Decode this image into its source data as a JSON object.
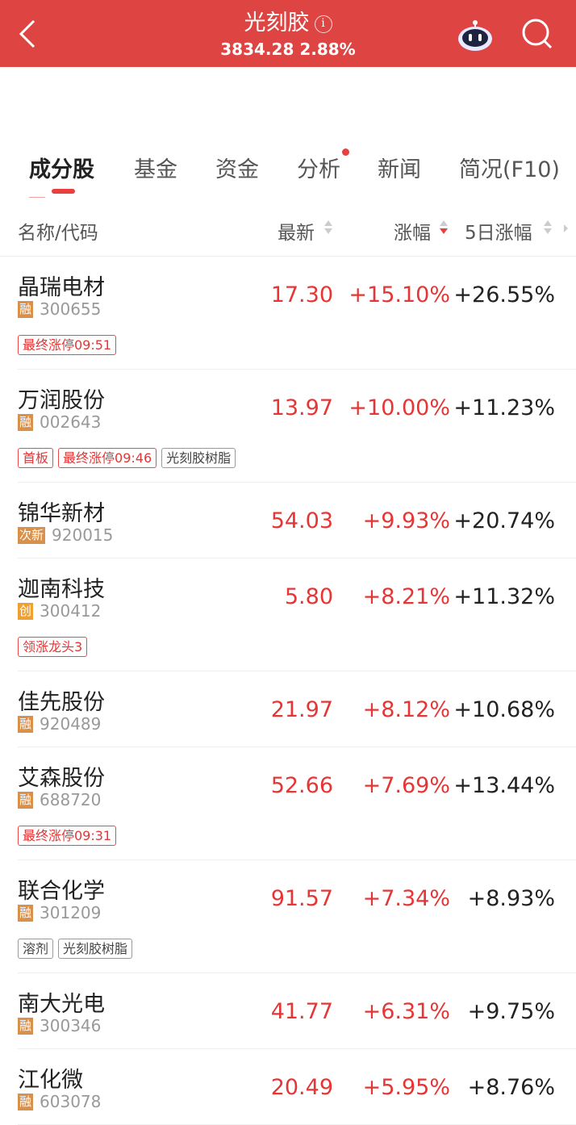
{
  "header": {
    "title": "光刻胶",
    "index_value": "3834.28",
    "index_change": "2.88%",
    "info_icon": "info-icon",
    "robot_icon": "robot-icon",
    "search_icon": "search-icon"
  },
  "tabs": [
    {
      "label": "成分股",
      "active": true
    },
    {
      "label": "基金"
    },
    {
      "label": "资金"
    },
    {
      "label": "分析",
      "dot": true
    },
    {
      "label": "新闻"
    },
    {
      "label": "简况(F10)"
    }
  ],
  "columns": {
    "name": "名称/代码",
    "price": "最新",
    "change": "涨幅",
    "change5": "5日涨幅",
    "sorted": "涨幅 desc"
  },
  "colors": {
    "header": "#dd4442",
    "up": "#e63535",
    "badge_rong": "#d9904a",
    "badge_chuang": "#f0a030"
  },
  "stocks": [
    {
      "name": "晶瑞电材",
      "badge": "融",
      "code": "300655",
      "price": "17.30",
      "change": "+15.10%",
      "change5": "+26.55%",
      "tags": [
        {
          "t": "最终涨停09:51",
          "red": true
        }
      ]
    },
    {
      "name": "万润股份",
      "badge": "融",
      "code": "002643",
      "price": "13.97",
      "change": "+10.00%",
      "change5": "+11.23%",
      "tags": [
        {
          "t": "首板",
          "red": true
        },
        {
          "t": "最终涨停09:46",
          "red": true
        },
        {
          "t": "光刻胶树脂",
          "red": false
        }
      ]
    },
    {
      "name": "锦华新材",
      "badge": "次新",
      "code": "920015",
      "price": "54.03",
      "change": "+9.93%",
      "change5": "+20.74%",
      "tags": []
    },
    {
      "name": "迦南科技",
      "badge": "创",
      "code": "300412",
      "price": "5.80",
      "change": "+8.21%",
      "change5": "+11.32%",
      "tags": [
        {
          "t": "领涨龙头3",
          "red": true
        }
      ]
    },
    {
      "name": "佳先股份",
      "badge": "融",
      "code": "920489",
      "price": "21.97",
      "change": "+8.12%",
      "change5": "+10.68%",
      "tags": []
    },
    {
      "name": "艾森股份",
      "badge": "融",
      "code": "688720",
      "price": "52.66",
      "change": "+7.69%",
      "change5": "+13.44%",
      "tags": [
        {
          "t": "最终涨停09:31",
          "red": true
        }
      ]
    },
    {
      "name": "联合化学",
      "badge": "融",
      "code": "301209",
      "price": "91.57",
      "change": "+7.34%",
      "change5": "+8.93%",
      "tags": [
        {
          "t": "溶剂",
          "red": false
        },
        {
          "t": "光刻胶树脂",
          "red": false
        }
      ]
    },
    {
      "name": "南大光电",
      "badge": "融",
      "code": "300346",
      "price": "41.77",
      "change": "+6.31%",
      "change5": "+9.75%",
      "tags": []
    },
    {
      "name": "江化微",
      "badge": "融",
      "code": "603078",
      "price": "20.49",
      "change": "+5.95%",
      "change5": "+8.76%",
      "tags": []
    }
  ]
}
